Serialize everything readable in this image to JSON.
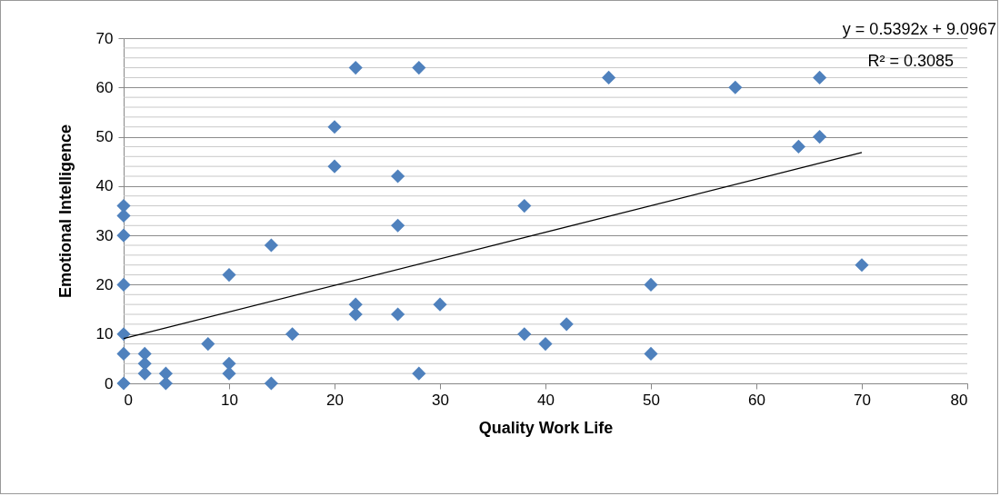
{
  "chart_data": {
    "type": "scatter",
    "xlabel": "Quality Work Life",
    "ylabel": "Emotional Intelligence",
    "annotations": [
      "y = 0.5392x + 9.0967",
      "R² = 0.3085"
    ],
    "series": [
      {
        "color": "#4f81bd",
        "marker": "diamond",
        "x": [
          0,
          0,
          0,
          0,
          0,
          0,
          0,
          2,
          2,
          2,
          4,
          4,
          8,
          10,
          10,
          10,
          14,
          14,
          16,
          20,
          20,
          22,
          22,
          22,
          26,
          26,
          26,
          28,
          28,
          30,
          38,
          38,
          40,
          42,
          46,
          50,
          50,
          58,
          64,
          66,
          66,
          70
        ],
        "values": [
          36,
          34,
          30,
          20,
          10,
          6,
          0,
          6,
          4,
          2,
          2,
          0,
          8,
          22,
          4,
          2,
          28,
          0,
          10,
          52,
          44,
          64,
          16,
          14,
          42,
          32,
          14,
          64,
          2,
          16,
          36,
          10,
          8,
          12,
          62,
          20,
          6,
          60,
          48,
          62,
          50,
          24
        ]
      },
      {
        "type": "line",
        "color": "#000000",
        "x": [
          0,
          70
        ],
        "values": [
          9.1,
          46.8
        ]
      }
    ],
    "xlim": [
      0,
      80
    ],
    "xticks": [
      0,
      10,
      20,
      30,
      40,
      50,
      60,
      70,
      80
    ],
    "ylim": [
      0,
      70
    ],
    "yticks": [
      0,
      {
        "value": 2,
        "label": null
      },
      {
        "value": 4,
        "label": null
      },
      {
        "value": 6,
        "label": null
      },
      {
        "value": 8,
        "label": null
      },
      10,
      {
        "value": 12,
        "label": null
      },
      {
        "value": 14,
        "label": null
      },
      {
        "value": 16,
        "label": null
      },
      {
        "value": 18,
        "label": null
      },
      20,
      {
        "value": 22,
        "label": null
      },
      {
        "value": 24,
        "label": null
      },
      {
        "value": 26,
        "label": null
      },
      {
        "value": 28,
        "label": null
      },
      30,
      {
        "value": 32,
        "label": null
      },
      {
        "value": 34,
        "label": null
      },
      {
        "value": 36,
        "label": null
      },
      {
        "value": 38,
        "label": null
      },
      40,
      {
        "value": 42,
        "label": null
      },
      {
        "value": 44,
        "label": null
      },
      {
        "value": 46,
        "label": null
      },
      {
        "value": 48,
        "label": null
      },
      50,
      {
        "value": 52,
        "label": null
      },
      {
        "value": 54,
        "label": null
      },
      {
        "value": 56,
        "label": null
      },
      {
        "value": 58,
        "label": null
      },
      60,
      {
        "value": 62,
        "label": null
      },
      {
        "value": 64,
        "label": null
      },
      {
        "value": 66,
        "label": null
      },
      {
        "value": 68,
        "label": null
      },
      70
    ],
    "grid": "y"
  }
}
